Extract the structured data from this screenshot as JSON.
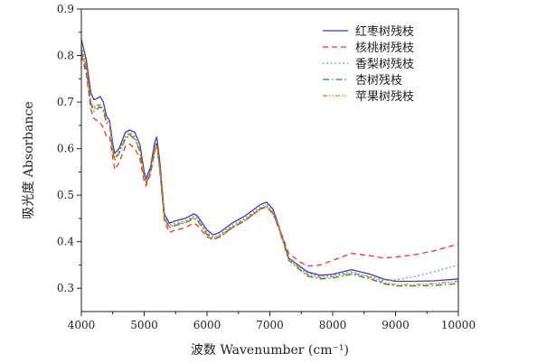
{
  "chart_data": {
    "type": "line",
    "xlabel": "波数 Wavenumber (cm⁻¹)",
    "ylabel": "吸光度 Absorbance",
    "xlim": [
      4000,
      10000
    ],
    "ylim": [
      0.25,
      0.9
    ],
    "xticks": [
      "4000",
      "5000",
      "6000",
      "7000",
      "8000",
      "9000",
      "10000"
    ],
    "yticks": [
      "0.3",
      "0.4",
      "0.5",
      "0.6",
      "0.7",
      "0.8",
      "0.9"
    ],
    "legend_position": "top-right",
    "x": [
      4000,
      4080,
      4150,
      4200,
      4250,
      4300,
      4350,
      4400,
      4450,
      4500,
      4530,
      4600,
      4700,
      4770,
      4850,
      4930,
      5000,
      5030,
      5100,
      5170,
      5200,
      5250,
      5320,
      5400,
      5500,
      5650,
      5790,
      5850,
      6000,
      6100,
      6200,
      6400,
      6600,
      6850,
      6950,
      7050,
      7150,
      7300,
      7500,
      7600,
      7800,
      8000,
      8300,
      8600,
      8800,
      9000,
      9300,
      9600,
      10000
    ],
    "series": [
      {
        "name": "红枣树残枝",
        "color": "#3b3fa8",
        "dash": "",
        "values": [
          0.835,
          0.79,
          0.72,
          0.705,
          0.708,
          0.712,
          0.7,
          0.67,
          0.66,
          0.61,
          0.59,
          0.6,
          0.635,
          0.64,
          0.635,
          0.61,
          0.55,
          0.535,
          0.56,
          0.615,
          0.625,
          0.57,
          0.46,
          0.44,
          0.445,
          0.45,
          0.46,
          0.455,
          0.425,
          0.415,
          0.42,
          0.44,
          0.455,
          0.48,
          0.485,
          0.47,
          0.43,
          0.365,
          0.345,
          0.335,
          0.328,
          0.33,
          0.34,
          0.33,
          0.32,
          0.315,
          0.315,
          0.316,
          0.32
        ]
      },
      {
        "name": "核桃树残枝",
        "color": "#e03c32",
        "dash": "6,4",
        "values": [
          0.8,
          0.76,
          0.685,
          0.665,
          0.66,
          0.655,
          0.645,
          0.625,
          0.625,
          0.58,
          0.555,
          0.57,
          0.605,
          0.61,
          0.6,
          0.58,
          0.53,
          0.52,
          0.545,
          0.595,
          0.61,
          0.55,
          0.445,
          0.42,
          0.425,
          0.43,
          0.44,
          0.435,
          0.41,
          0.405,
          0.41,
          0.43,
          0.445,
          0.47,
          0.475,
          0.46,
          0.43,
          0.375,
          0.355,
          0.348,
          0.35,
          0.36,
          0.375,
          0.37,
          0.365,
          0.367,
          0.372,
          0.38,
          0.395
        ]
      },
      {
        "name": "香梨树残枝",
        "color": "#3d7fd9",
        "dash": "1.5,3",
        "values": [
          0.82,
          0.78,
          0.7,
          0.685,
          0.69,
          0.692,
          0.685,
          0.66,
          0.655,
          0.6,
          0.58,
          0.595,
          0.625,
          0.635,
          0.625,
          0.6,
          0.545,
          0.53,
          0.555,
          0.605,
          0.615,
          0.56,
          0.455,
          0.435,
          0.44,
          0.445,
          0.455,
          0.45,
          0.42,
          0.41,
          0.415,
          0.435,
          0.45,
          0.475,
          0.48,
          0.465,
          0.43,
          0.365,
          0.343,
          0.333,
          0.326,
          0.328,
          0.335,
          0.325,
          0.317,
          0.318,
          0.325,
          0.335,
          0.35
        ]
      },
      {
        "name": "杏树残枝",
        "color": "#2a8a3a",
        "dash": "7,3,1.5,3",
        "values": [
          0.81,
          0.77,
          0.695,
          0.68,
          0.685,
          0.69,
          0.68,
          0.655,
          0.65,
          0.595,
          0.575,
          0.59,
          0.62,
          0.63,
          0.62,
          0.595,
          0.54,
          0.525,
          0.55,
          0.6,
          0.61,
          0.555,
          0.45,
          0.43,
          0.435,
          0.44,
          0.45,
          0.445,
          0.415,
          0.405,
          0.41,
          0.43,
          0.445,
          0.47,
          0.475,
          0.46,
          0.425,
          0.36,
          0.337,
          0.326,
          0.32,
          0.322,
          0.33,
          0.32,
          0.31,
          0.305,
          0.305,
          0.306,
          0.31
        ]
      },
      {
        "name": "苹果树残枝",
        "color": "#e07a1e",
        "dash": "5,2,1.5,2,1.5,2",
        "values": [
          0.815,
          0.775,
          0.7,
          0.69,
          0.693,
          0.695,
          0.685,
          0.66,
          0.655,
          0.598,
          0.578,
          0.592,
          0.622,
          0.632,
          0.622,
          0.598,
          0.542,
          0.528,
          0.552,
          0.602,
          0.612,
          0.558,
          0.452,
          0.432,
          0.437,
          0.442,
          0.452,
          0.447,
          0.417,
          0.407,
          0.412,
          0.432,
          0.447,
          0.472,
          0.477,
          0.462,
          0.427,
          0.362,
          0.34,
          0.329,
          0.323,
          0.325,
          0.333,
          0.323,
          0.313,
          0.308,
          0.308,
          0.31,
          0.315
        ]
      }
    ]
  }
}
